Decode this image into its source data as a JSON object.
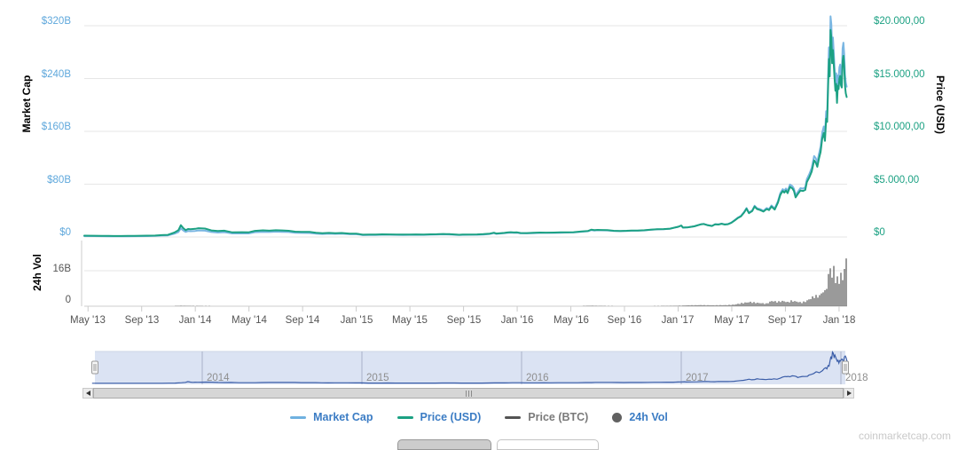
{
  "watermark": "coinmarketcap.com",
  "chart_data": {
    "type": "line",
    "title": "",
    "axes": {
      "market_cap": {
        "title": "Market Cap",
        "labels": [
          "$320B",
          "$240B",
          "$160B",
          "$80B",
          "$0"
        ],
        "range_billion": [
          0,
          320
        ],
        "color": "#5fa8dc"
      },
      "price_usd": {
        "title": "Price (USD)",
        "labels": [
          "$20.000,00",
          "$15.000,00",
          "$10.000,00",
          "$5.000,00",
          "$0"
        ],
        "range_usd": [
          0,
          20000
        ],
        "color": "#1ca183"
      },
      "volume": {
        "title": "24h Vol",
        "labels": [
          "16B",
          "0"
        ],
        "range_billion": [
          0,
          16
        ],
        "color": "#555555"
      },
      "x": {
        "labels": [
          "May '13",
          "Sep '13",
          "Jan '14",
          "May '14",
          "Sep '14",
          "Jan '15",
          "May '15",
          "Sep '15",
          "Jan '16",
          "May '16",
          "Sep '16",
          "Jan '17",
          "May '17",
          "Sep '17",
          "Jan '18"
        ],
        "range_decimal_year": [
          2013.31,
          2018.05
        ],
        "color": "#555555"
      }
    },
    "navigator_years": [
      "2014",
      "2015",
      "2016",
      "2017",
      "2018"
    ],
    "legend": [
      {
        "label": "Market Cap",
        "swatch": "line",
        "color": "#6fb1e0",
        "text_color": "#3b7cc4",
        "enabled": true
      },
      {
        "label": "Price (USD)",
        "swatch": "line",
        "color": "#1ca183",
        "text_color": "#3b7cc4",
        "enabled": true
      },
      {
        "label": "Price (BTC)",
        "swatch": "line",
        "color": "#545454",
        "text_color": "#7a7a7a",
        "enabled": false
      },
      {
        "label": "24h Vol",
        "swatch": "circle",
        "color": "#616161",
        "text_color": "#3b7cc4",
        "enabled": true
      }
    ],
    "series": [
      {
        "name": "Price (USD)",
        "type": "line",
        "color": "#1ca183",
        "points_year_usd": [
          [
            2013.31,
            125
          ],
          [
            2013.37,
            117
          ],
          [
            2013.42,
            108
          ],
          [
            2013.46,
            100
          ],
          [
            2013.54,
            90
          ],
          [
            2013.58,
            97
          ],
          [
            2013.62,
            103
          ],
          [
            2013.7,
            122
          ],
          [
            2013.75,
            135
          ],
          [
            2013.79,
            180
          ],
          [
            2013.83,
            205
          ],
          [
            2013.87,
            420
          ],
          [
            2013.895,
            640
          ],
          [
            2013.91,
            1120
          ],
          [
            2013.925,
            840
          ],
          [
            2013.94,
            650
          ],
          [
            2013.955,
            760
          ],
          [
            2013.97,
            730
          ],
          [
            2014.0,
            770
          ],
          [
            2014.02,
            830
          ],
          [
            2014.06,
            800
          ],
          [
            2014.1,
            620
          ],
          [
            2014.14,
            560
          ],
          [
            2014.18,
            600
          ],
          [
            2014.23,
            440
          ],
          [
            2014.29,
            450
          ],
          [
            2014.33,
            440
          ],
          [
            2014.37,
            580
          ],
          [
            2014.42,
            630
          ],
          [
            2014.46,
            600
          ],
          [
            2014.5,
            640
          ],
          [
            2014.54,
            620
          ],
          [
            2014.58,
            590
          ],
          [
            2014.62,
            505
          ],
          [
            2014.66,
            480
          ],
          [
            2014.71,
            475
          ],
          [
            2014.75,
            400
          ],
          [
            2014.79,
            350
          ],
          [
            2014.83,
            390
          ],
          [
            2014.87,
            365
          ],
          [
            2014.91,
            375
          ],
          [
            2014.96,
            320
          ],
          [
            2015.0,
            315
          ],
          [
            2015.02,
            270
          ],
          [
            2015.04,
            215
          ],
          [
            2015.08,
            225
          ],
          [
            2015.12,
            235
          ],
          [
            2015.16,
            255
          ],
          [
            2015.21,
            245
          ],
          [
            2015.25,
            235
          ],
          [
            2015.29,
            225
          ],
          [
            2015.33,
            237
          ],
          [
            2015.37,
            240
          ],
          [
            2015.42,
            230
          ],
          [
            2015.46,
            250
          ],
          [
            2015.5,
            263
          ],
          [
            2015.54,
            285
          ],
          [
            2015.56,
            277
          ],
          [
            2015.58,
            265
          ],
          [
            2015.62,
            228
          ],
          [
            2015.64,
            210
          ],
          [
            2015.66,
            230
          ],
          [
            2015.71,
            237
          ],
          [
            2015.75,
            240
          ],
          [
            2015.79,
            265
          ],
          [
            2015.83,
            320
          ],
          [
            2015.855,
            400
          ],
          [
            2015.87,
            330
          ],
          [
            2015.895,
            360
          ],
          [
            2015.92,
            387
          ],
          [
            2015.94,
            430
          ],
          [
            2015.96,
            455
          ],
          [
            2015.98,
            430
          ],
          [
            2016.0,
            433
          ],
          [
            2016.02,
            380
          ],
          [
            2016.06,
            373
          ],
          [
            2016.1,
            395
          ],
          [
            2016.14,
            420
          ],
          [
            2016.18,
            415
          ],
          [
            2016.23,
            418
          ],
          [
            2016.27,
            435
          ],
          [
            2016.31,
            448
          ],
          [
            2016.35,
            455
          ],
          [
            2016.4,
            530
          ],
          [
            2016.44,
            575
          ],
          [
            2016.46,
            690
          ],
          [
            2016.48,
            650
          ],
          [
            2016.5,
            670
          ],
          [
            2016.52,
            660
          ],
          [
            2016.56,
            650
          ],
          [
            2016.6,
            585
          ],
          [
            2016.64,
            575
          ],
          [
            2016.68,
            590
          ],
          [
            2016.71,
            610
          ],
          [
            2016.75,
            615
          ],
          [
            2016.79,
            640
          ],
          [
            2016.83,
            700
          ],
          [
            2016.87,
            735
          ],
          [
            2016.91,
            750
          ],
          [
            2016.95,
            790
          ],
          [
            2016.98,
            900
          ],
          [
            2017.0,
            970
          ],
          [
            2017.02,
            1080
          ],
          [
            2017.03,
            890
          ],
          [
            2017.06,
            920
          ],
          [
            2017.1,
            1010
          ],
          [
            2017.14,
            1190
          ],
          [
            2017.16,
            1230
          ],
          [
            2017.18,
            1130
          ],
          [
            2017.21,
            1040
          ],
          [
            2017.23,
            1200
          ],
          [
            2017.25,
            1180
          ],
          [
            2017.27,
            1250
          ],
          [
            2017.29,
            1180
          ],
          [
            2017.31,
            1210
          ],
          [
            2017.33,
            1340
          ],
          [
            2017.35,
            1550
          ],
          [
            2017.37,
            1780
          ],
          [
            2017.39,
            1950
          ],
          [
            2017.41,
            2320
          ],
          [
            2017.425,
            2680
          ],
          [
            2017.44,
            2250
          ],
          [
            2017.46,
            2450
          ],
          [
            2017.475,
            2880
          ],
          [
            2017.49,
            2650
          ],
          [
            2017.51,
            2550
          ],
          [
            2017.53,
            2400
          ],
          [
            2017.55,
            2650
          ],
          [
            2017.565,
            2550
          ],
          [
            2017.58,
            2880
          ],
          [
            2017.6,
            2600
          ],
          [
            2017.62,
            3250
          ],
          [
            2017.635,
            4000
          ],
          [
            2017.65,
            4350
          ],
          [
            2017.66,
            4200
          ],
          [
            2017.67,
            4400
          ],
          [
            2017.68,
            4150
          ],
          [
            2017.695,
            4750
          ],
          [
            2017.71,
            4600
          ],
          [
            2017.72,
            4350
          ],
          [
            2017.73,
            3750
          ],
          [
            2017.745,
            4100
          ],
          [
            2017.76,
            4400
          ],
          [
            2017.775,
            4350
          ],
          [
            2017.79,
            4450
          ],
          [
            2017.8,
            5200
          ],
          [
            2017.815,
            5650
          ],
          [
            2017.83,
            6200
          ],
          [
            2017.845,
            7250
          ],
          [
            2017.855,
            7050
          ],
          [
            2017.865,
            6650
          ],
          [
            2017.875,
            7400
          ],
          [
            2017.885,
            8050
          ],
          [
            2017.895,
            9300
          ],
          [
            2017.905,
            9850
          ],
          [
            2017.912,
            9100
          ],
          [
            2017.92,
            11200
          ],
          [
            2017.926,
            10900
          ],
          [
            2017.932,
            14300
          ],
          [
            2017.937,
            16850
          ],
          [
            2017.942,
            15200
          ],
          [
            2017.947,
            19600
          ],
          [
            2017.952,
            18900
          ],
          [
            2017.957,
            16450
          ],
          [
            2017.962,
            17700
          ],
          [
            2017.967,
            16400
          ],
          [
            2017.972,
            15050
          ],
          [
            2017.977,
            13850
          ],
          [
            2017.982,
            14500
          ],
          [
            2017.987,
            12700
          ],
          [
            2017.992,
            14300
          ],
          [
            2017.997,
            14000
          ],
          [
            2018.002,
            15000
          ],
          [
            2018.007,
            15250
          ],
          [
            2018.012,
            14350
          ],
          [
            2018.017,
            14150
          ],
          [
            2018.022,
            16650
          ],
          [
            2018.027,
            17150
          ],
          [
            2018.032,
            16150
          ],
          [
            2018.037,
            14300
          ],
          [
            2018.042,
            13600
          ],
          [
            2018.047,
            13250
          ]
        ]
      },
      {
        "name": "Market Cap",
        "type": "line",
        "color": "#7ab6e2",
        "derived_from": "Price (USD) x circulating supply",
        "supply_model_million": {
          "at_year": 2013.29,
          "start": 11.0,
          "growth_per_year": 1.3
        },
        "peak_billion": 334
      },
      {
        "name": "24h Vol",
        "type": "bar",
        "color": "#6e6e6e",
        "points_year_billion": [
          [
            2013.31,
            0.02
          ],
          [
            2013.6,
            0.02
          ],
          [
            2013.85,
            0.08
          ],
          [
            2013.91,
            0.25
          ],
          [
            2013.95,
            0.18
          ],
          [
            2014.0,
            0.15
          ],
          [
            2014.1,
            0.12
          ],
          [
            2014.3,
            0.06
          ],
          [
            2014.5,
            0.05
          ],
          [
            2014.7,
            0.04
          ],
          [
            2014.9,
            0.05
          ],
          [
            2015.0,
            0.09
          ],
          [
            2015.1,
            0.06
          ],
          [
            2015.3,
            0.04
          ],
          [
            2015.5,
            0.05
          ],
          [
            2015.7,
            0.05
          ],
          [
            2015.85,
            0.1
          ],
          [
            2015.95,
            0.12
          ],
          [
            2016.0,
            0.1
          ],
          [
            2016.2,
            0.08
          ],
          [
            2016.4,
            0.12
          ],
          [
            2016.46,
            0.25
          ],
          [
            2016.5,
            0.18
          ],
          [
            2016.6,
            0.12
          ],
          [
            2016.8,
            0.1
          ],
          [
            2016.95,
            0.18
          ],
          [
            2017.0,
            0.25
          ],
          [
            2017.05,
            0.4
          ],
          [
            2017.1,
            0.5
          ],
          [
            2017.15,
            0.55
          ],
          [
            2017.2,
            0.45
          ],
          [
            2017.25,
            0.5
          ],
          [
            2017.3,
            0.55
          ],
          [
            2017.35,
            0.8
          ],
          [
            2017.4,
            1.6
          ],
          [
            2017.45,
            2.1
          ],
          [
            2017.5,
            1.6
          ],
          [
            2017.55,
            1.3
          ],
          [
            2017.58,
            2.6
          ],
          [
            2017.62,
            2.2
          ],
          [
            2017.65,
            2.6
          ],
          [
            2017.68,
            2.0
          ],
          [
            2017.7,
            2.7
          ],
          [
            2017.73,
            2.4
          ],
          [
            2017.76,
            1.9
          ],
          [
            2017.79,
            2.3
          ],
          [
            2017.81,
            3.2
          ],
          [
            2017.83,
            4.1
          ],
          [
            2017.85,
            5.6
          ],
          [
            2017.865,
            4.6
          ],
          [
            2017.88,
            5.4
          ],
          [
            2017.895,
            6.6
          ],
          [
            2017.905,
            8.2
          ],
          [
            2017.912,
            7.2
          ],
          [
            2017.92,
            10.6
          ],
          [
            2017.93,
            13.2
          ],
          [
            2017.94,
            16.6
          ],
          [
            2017.947,
            22.2
          ],
          [
            2017.952,
            14.2
          ],
          [
            2017.96,
            13.6
          ],
          [
            2017.965,
            21.6
          ],
          [
            2017.972,
            15.2
          ],
          [
            2017.98,
            12.2
          ],
          [
            2017.99,
            13.6
          ],
          [
            2018.0,
            14.6
          ],
          [
            2018.01,
            15.6
          ],
          [
            2018.02,
            13.2
          ],
          [
            2018.03,
            17.2
          ],
          [
            2018.04,
            20.2
          ],
          [
            2018.045,
            23.2
          ],
          [
            2018.05,
            18.6
          ]
        ]
      }
    ]
  }
}
